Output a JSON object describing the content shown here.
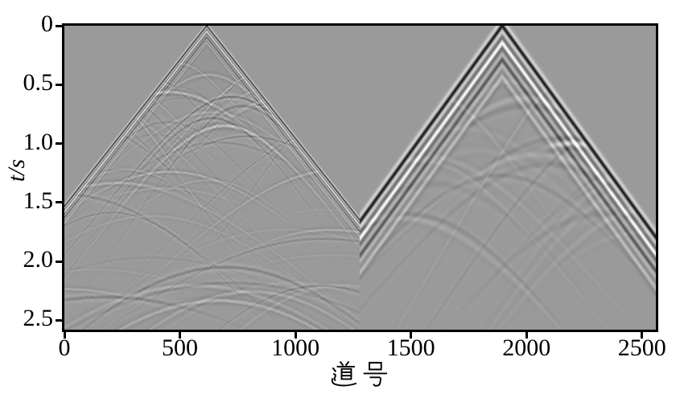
{
  "figure": {
    "background_color": "#ffffff",
    "plot_background_gray": "#9a9a9a",
    "frame_color": "#000000"
  },
  "axes": {
    "x": {
      "label": "道号",
      "range": [
        0,
        2560
      ],
      "ticks": [
        0,
        500,
        1000,
        1500,
        2000,
        2500
      ]
    },
    "y": {
      "label": "t/s",
      "range": [
        0,
        2.58
      ],
      "unit": "s",
      "ticks": [
        "0",
        "0.5",
        "1.0",
        "1.5",
        "2.0",
        "2.5"
      ]
    }
  },
  "chart_data": {
    "type": "heatmap",
    "subtype": "seismic_shot_gather_comparison",
    "title": "",
    "xlabel": "道号",
    "ylabel": "t/s",
    "xlim": [
      0,
      2560
    ],
    "ylim": [
      2.58,
      0
    ],
    "colormap": "gray",
    "background_gray_level": 154,
    "panels": [
      {
        "name": "left-panel",
        "trace_range": [
          0,
          1280
        ],
        "source_trace": 616,
        "first_arrival_apex_time_s": 0,
        "direct_wave_moveout_s_per_trace": 0.00249,
        "dominant_frequency_hz": 24,
        "texture": "dense high-frequency scattered hyperbolic events filling the triangular cone below the first arrival"
      },
      {
        "name": "right-panel",
        "trace_range": [
          1280,
          2560
        ],
        "source_trace": 1895,
        "first_arrival_apex_time_s": 0,
        "direct_wave_moveout_s_per_trace": 0.0027,
        "dominant_frequency_hz": 8,
        "texture": "smooth low-frequency wavefield with faint arcs",
        "bright_scatterer": {
          "trace": 2190,
          "time_s": 1.0
        }
      }
    ]
  }
}
